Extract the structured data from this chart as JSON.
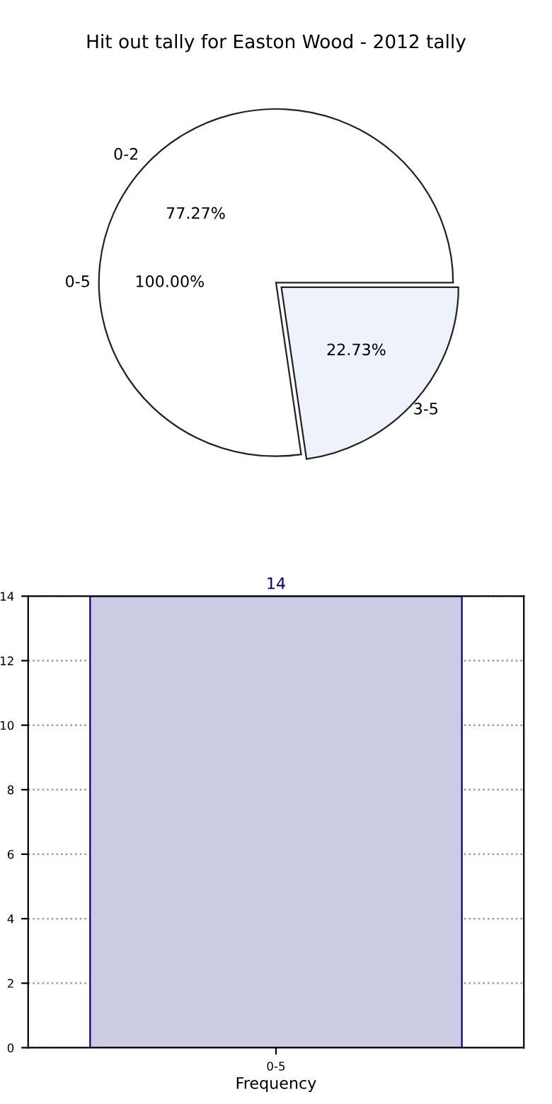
{
  "chart_data": [
    {
      "type": "pie",
      "title": "Hit out tally for Easton Wood - 2012 tally",
      "categories": [
        "0-2",
        "3-5"
      ],
      "values": [
        77.27,
        22.73
      ],
      "colors": [
        "#ffffff",
        "#eef2fb"
      ],
      "value_labels": [
        "77.27%",
        "22.73%"
      ],
      "annotations": [
        "0-5",
        "100.00%"
      ]
    },
    {
      "type": "bar",
      "categories": [
        "0-5"
      ],
      "values": [
        14
      ],
      "color": "#cbcbe3",
      "xlabel": "Frequency",
      "ylim": [
        0,
        14
      ],
      "yticks": [
        0,
        2,
        4,
        6,
        8,
        10,
        12,
        14
      ],
      "grid": true,
      "data_labels": true
    }
  ]
}
